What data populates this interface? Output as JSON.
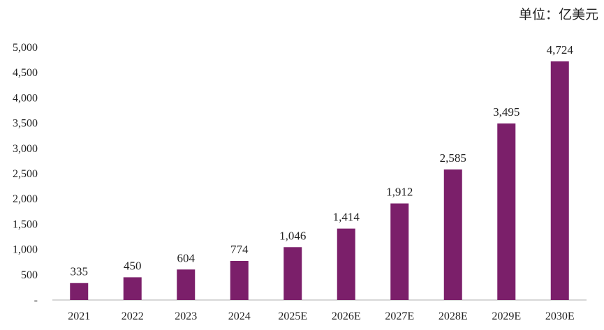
{
  "unit_label": "单位：亿美元",
  "chart_data": {
    "type": "bar",
    "title": "",
    "xlabel": "",
    "ylabel": "",
    "categories": [
      "2021",
      "2022",
      "2023",
      "2024",
      "2025E",
      "2026E",
      "2027E",
      "2028E",
      "2029E",
      "2030E"
    ],
    "values": [
      335,
      450,
      604,
      774,
      1046,
      1414,
      1912,
      2585,
      3495,
      4724
    ],
    "value_labels": [
      "335",
      "450",
      "604",
      "774",
      "1,046",
      "1,414",
      "1,912",
      "2,585",
      "3,495",
      "4,724"
    ],
    "y_ticks": [
      "-",
      "500",
      "1,000",
      "1,500",
      "2,000",
      "2,500",
      "3,000",
      "3,500",
      "4,000",
      "4,500",
      "5,000"
    ],
    "ylim": [
      0,
      5000
    ],
    "grid": false,
    "bar_color": "#7b1f6a",
    "axis_color": "#bfbfbf"
  }
}
